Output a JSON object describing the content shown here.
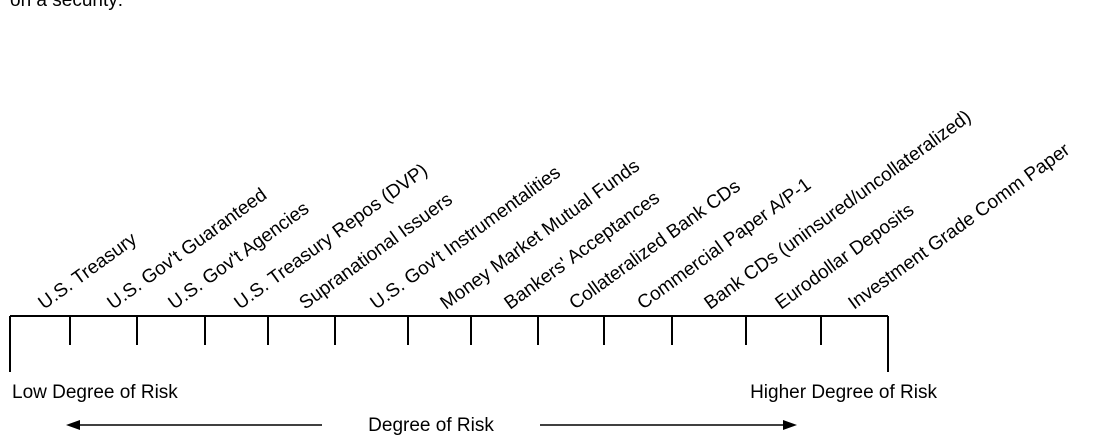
{
  "intro_fragment": "on a security:",
  "instruments": [
    "U.S. Treasury",
    "U.S. Gov't Guaranteed",
    "U.S. Gov't Agencies",
    "U.S. Treasury Repos (DVP)",
    "Supranational Issuers",
    "U.S. Gov't Instrumentalities",
    "Money Market Mutual Funds",
    "Bankers' Acceptances",
    "Collateralized Bank CDs",
    "Commercial Paper A/P-1",
    "Bank CDs (uninsured/uncollateralized)",
    "Eurodollar Deposits",
    "Investment Grade Comm Paper"
  ],
  "low_label": "Low Degree of Risk",
  "high_label": "Higher Degree of Risk",
  "axis_label": "Degree of Risk"
}
